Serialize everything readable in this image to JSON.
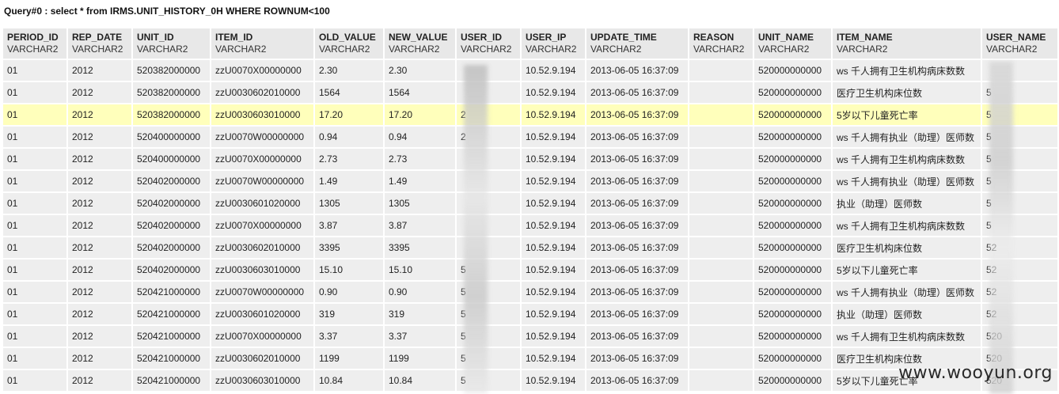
{
  "query_title": "Query#0 : select * from IRMS.UNIT_HISTORY_0H WHERE ROWNUM<100",
  "columns": [
    {
      "name": "PERIOD_ID",
      "type": "VARCHAR2"
    },
    {
      "name": "REP_DATE",
      "type": "VARCHAR2"
    },
    {
      "name": "UNIT_ID",
      "type": "VARCHAR2"
    },
    {
      "name": "ITEM_ID",
      "type": "VARCHAR2"
    },
    {
      "name": "OLD_VALUE",
      "type": "VARCHAR2"
    },
    {
      "name": "NEW_VALUE",
      "type": "VARCHAR2"
    },
    {
      "name": "USER_ID",
      "type": "VARCHAR2"
    },
    {
      "name": "USER_IP",
      "type": "VARCHAR2"
    },
    {
      "name": "UPDATE_TIME",
      "type": "VARCHAR2"
    },
    {
      "name": "REASON",
      "type": "VARCHAR2"
    },
    {
      "name": "UNIT_NAME",
      "type": "VARCHAR2"
    },
    {
      "name": "ITEM_NAME",
      "type": "VARCHAR2"
    },
    {
      "name": "USER_NAME",
      "type": "VARCHAR2"
    }
  ],
  "selected_row": 2,
  "rows": [
    [
      "01",
      "2012",
      "520382000000",
      "zzU0070X00000000",
      "2.30",
      "2.30",
      "",
      "10.52.9.194",
      "2013-06-05 16:37:09",
      "",
      "520000000000",
      "ws 千人拥有卫生机构病床数数",
      ""
    ],
    [
      "01",
      "2012",
      "520382000000",
      "zzU0030602010000",
      "1564",
      "1564",
      "",
      "10.52.9.194",
      "2013-06-05 16:37:09",
      "",
      "520000000000",
      "医疗卫生机构床位数",
      "5"
    ],
    [
      "01",
      "2012",
      "520382000000",
      "zzU0030603010000",
      "17.20",
      "17.20",
      "2",
      "10.52.9.194",
      "2013-06-05 16:37:09",
      "",
      "520000000000",
      "5岁以下儿童死亡率",
      "5"
    ],
    [
      "01",
      "2012",
      "520400000000",
      "zzU0070W00000000",
      "0.94",
      "0.94",
      "2",
      "10.52.9.194",
      "2013-06-05 16:37:09",
      "",
      "520000000000",
      "ws 千人拥有执业（助理）医师数",
      "5"
    ],
    [
      "01",
      "2012",
      "520400000000",
      "zzU0070X00000000",
      "2.73",
      "2.73",
      "",
      "10.52.9.194",
      "2013-06-05 16:37:09",
      "",
      "520000000000",
      "ws 千人拥有卫生机构病床数数",
      "5"
    ],
    [
      "01",
      "2012",
      "520402000000",
      "zzU0070W00000000",
      "1.49",
      "1.49",
      "",
      "10.52.9.194",
      "2013-06-05 16:37:09",
      "",
      "520000000000",
      "ws 千人拥有执业（助理）医师数",
      "5"
    ],
    [
      "01",
      "2012",
      "520402000000",
      "zzU0030601020000",
      "1305",
      "1305",
      "",
      "10.52.9.194",
      "2013-06-05 16:37:09",
      "",
      "520000000000",
      "执业（助理）医师数",
      "5"
    ],
    [
      "01",
      "2012",
      "520402000000",
      "zzU0070X00000000",
      "3.87",
      "3.87",
      "",
      "10.52.9.194",
      "2013-06-05 16:37:09",
      "",
      "520000000000",
      "ws 千人拥有卫生机构病床数数",
      "5"
    ],
    [
      "01",
      "2012",
      "520402000000",
      "zzU0030602010000",
      "3395",
      "3395",
      "",
      "10.52.9.194",
      "2013-06-05 16:37:09",
      "",
      "520000000000",
      "医疗卫生机构床位数",
      "52"
    ],
    [
      "01",
      "2012",
      "520402000000",
      "zzU0030603010000",
      "15.10",
      "15.10",
      "5",
      "10.52.9.194",
      "2013-06-05 16:37:09",
      "",
      "520000000000",
      "5岁以下儿童死亡率",
      "52"
    ],
    [
      "01",
      "2012",
      "520421000000",
      "zzU0070W00000000",
      "0.90",
      "0.90",
      "5",
      "10.52.9.194",
      "2013-06-05 16:37:09",
      "",
      "520000000000",
      "ws 千人拥有执业（助理）医师数",
      "52"
    ],
    [
      "01",
      "2012",
      "520421000000",
      "zzU0030601020000",
      "319",
      "319",
      "5",
      "10.52.9.194",
      "2013-06-05 16:37:09",
      "",
      "520000000000",
      "执业（助理）医师数",
      "52"
    ],
    [
      "01",
      "2012",
      "520421000000",
      "zzU0070X00000000",
      "3.37",
      "3.37",
      "5",
      "10.52.9.194",
      "2013-06-05 16:37:09",
      "",
      "520000000000",
      "ws 千人拥有卫生机构病床数数",
      "520"
    ],
    [
      "01",
      "2012",
      "520421000000",
      "zzU0030602010000",
      "1199",
      "1199",
      "5",
      "10.52.9.194",
      "2013-06-05 16:37:09",
      "",
      "520000000000",
      "医疗卫生机构床位数",
      "520"
    ],
    [
      "01",
      "2012",
      "520421000000",
      "zzU0030603010000",
      "10.84",
      "10.84",
      "5",
      "10.52.9.194",
      "2013-06-05 16:37:09",
      "",
      "520000000000",
      "5岁以下儿童死亡率",
      "520"
    ]
  ],
  "watermark": "www.wooyun.org"
}
